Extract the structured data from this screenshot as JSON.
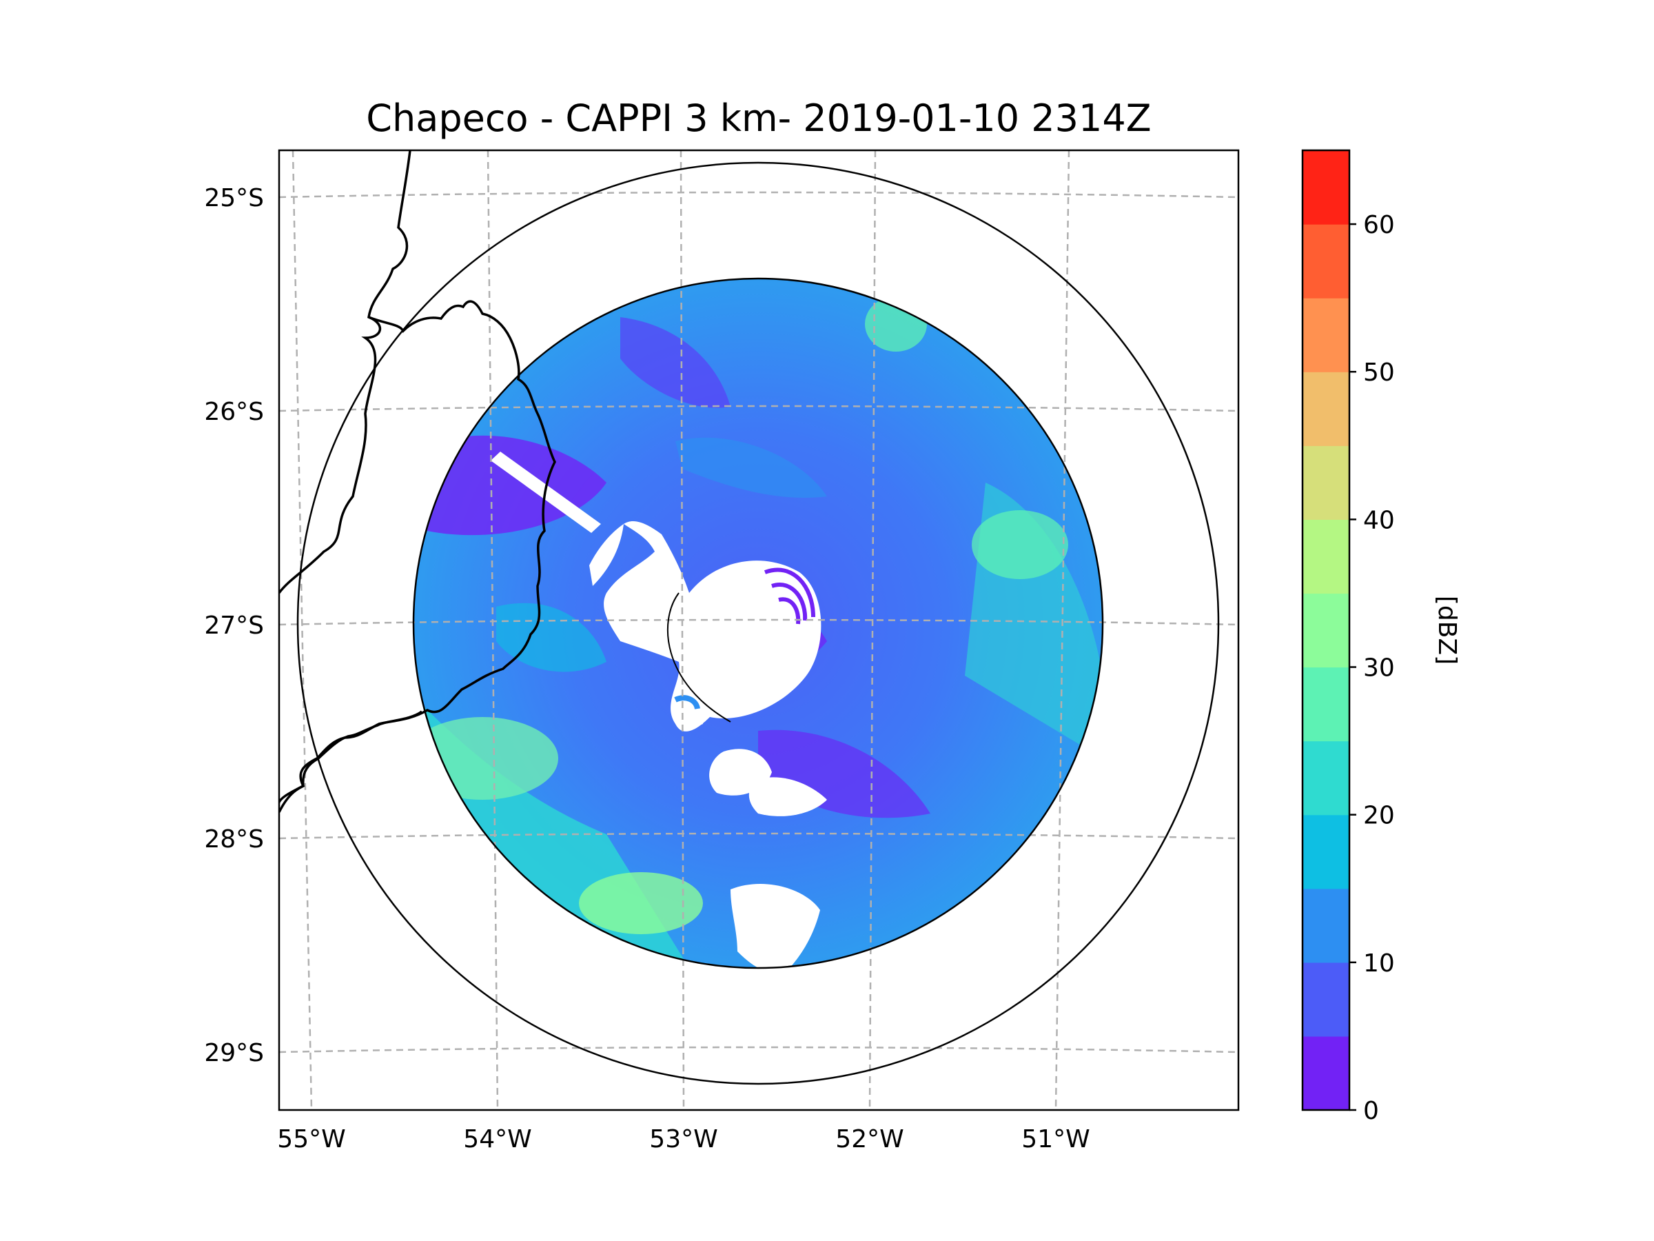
{
  "title": "Chapeco - CAPPI 3 km- 2019-01-10 2314Z",
  "map": {
    "lat_labels": [
      "25°S",
      "26°S",
      "27°S",
      "28°S",
      "29°S"
    ],
    "lon_labels": [
      "55°W",
      "54°W",
      "53°W",
      "52°W",
      "51°W"
    ],
    "range_rings": [
      "inner-data-ring",
      "outer-ring"
    ],
    "lines": [
      "state-border",
      "country-border"
    ]
  },
  "colorbar": {
    "label": "[dBZ]",
    "ticks": [
      "0",
      "10",
      "20",
      "30",
      "40",
      "50",
      "60"
    ],
    "min": 0,
    "max": 65,
    "step": 5,
    "colors": [
      "#7222f5",
      "#4c5cf8",
      "#2d8ff2",
      "#0ebfe3",
      "#2fdbd0",
      "#5df2b4",
      "#8cfc9a",
      "#b4f783",
      "#d6df7a",
      "#f1be6b",
      "#ff9150",
      "#ff5e32",
      "#ff2316"
    ]
  },
  "chart_data": {
    "type": "heatmap",
    "title": "Chapeco - CAPPI 3 km- 2019-01-10 2314Z",
    "variable": "reflectivity",
    "units": "dBZ",
    "colorbar_range": [
      0,
      65
    ],
    "colorbar_ticks": [
      0,
      10,
      20,
      30,
      40,
      50,
      60
    ],
    "lon_ticks": [
      -55,
      -54,
      -53,
      -52,
      -51
    ],
    "lat_ticks": [
      -25,
      -26,
      -27,
      -28,
      -29
    ]
  }
}
